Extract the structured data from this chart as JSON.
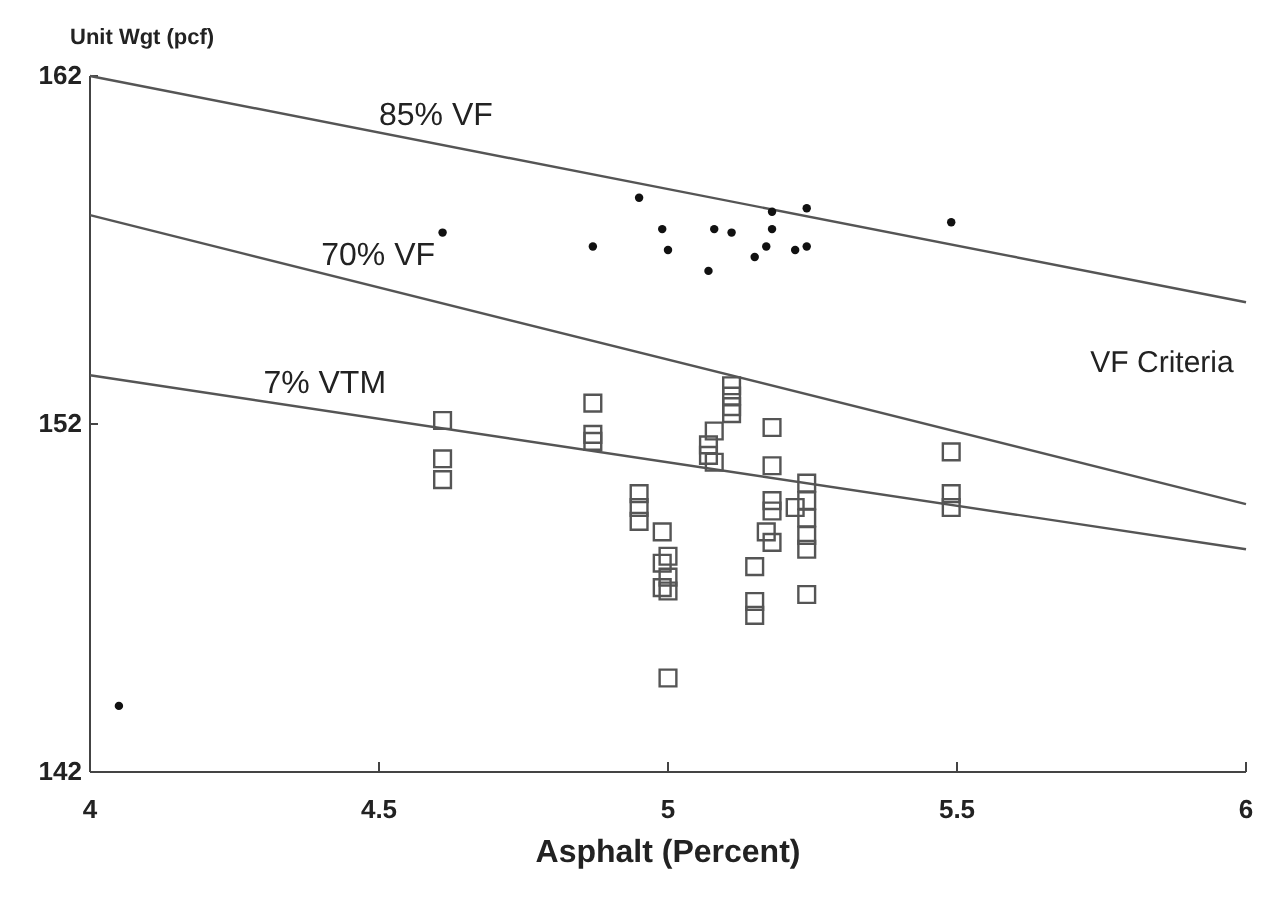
{
  "chart_data": {
    "type": "scatter",
    "xlabel": "Asphalt (Percent)",
    "ylabel": "Unit Wgt (pcf)",
    "xlim": [
      4,
      6
    ],
    "ylim": [
      142,
      162
    ],
    "xticks": [
      4,
      4.5,
      5,
      5.5,
      6
    ],
    "yticks": [
      142,
      152,
      162
    ],
    "grid": false,
    "annotations": [
      "VF Criteria"
    ],
    "series": [
      {
        "name": "85% VF",
        "type": "line",
        "color": "#555555",
        "marker": "none",
        "x": [
          4,
          6
        ],
        "values": [
          162,
          155.5
        ]
      },
      {
        "name": "70% VF",
        "type": "line",
        "color": "#555555",
        "marker": "none",
        "x": [
          4,
          6
        ],
        "values": [
          158,
          149.7
        ]
      },
      {
        "name": "7% VTM",
        "type": "line",
        "color": "#555555",
        "marker": "none",
        "x": [
          4,
          6
        ],
        "values": [
          153.4,
          148.4
        ]
      },
      {
        "color": "#111111",
        "marker": "circle",
        "x": [
          4.61,
          4.87,
          4.95,
          4.99,
          5.0,
          5.07,
          5.08,
          5.11,
          5.15,
          5.17,
          5.18,
          5.18,
          5.22,
          5.24,
          5.24,
          5.49,
          4.05
        ],
        "values": [
          157.5,
          157.1,
          158.5,
          157.6,
          157.0,
          156.4,
          157.6,
          157.5,
          156.8,
          157.1,
          157.6,
          158.1,
          157.0,
          157.1,
          158.2,
          157.8,
          143.9
        ]
      },
      {
        "color": "#555555",
        "marker": "square",
        "x": [
          4.61,
          4.61,
          4.61,
          4.87,
          4.87,
          4.87,
          4.95,
          4.95,
          4.95,
          4.99,
          5.0,
          4.99,
          5.0,
          4.99,
          5.0,
          5.0,
          5.11,
          5.11,
          5.11,
          5.11,
          5.08,
          5.07,
          5.07,
          5.08,
          5.18,
          5.18,
          5.18,
          5.18,
          5.17,
          5.18,
          5.15,
          5.15,
          5.15,
          5.22,
          5.24,
          5.24,
          5.24,
          5.24,
          5.24,
          5.24,
          5.49,
          5.49,
          5.49
        ],
        "values": [
          152.1,
          151.0,
          150.4,
          152.6,
          151.7,
          151.5,
          150.0,
          149.6,
          149.2,
          148.9,
          148.2,
          148.0,
          147.6,
          147.3,
          147.2,
          144.7,
          153.1,
          152.8,
          152.5,
          152.3,
          151.8,
          151.4,
          151.1,
          150.9,
          151.9,
          150.8,
          149.8,
          149.5,
          148.9,
          148.6,
          147.9,
          146.9,
          146.5,
          149.6,
          150.3,
          149.8,
          149.3,
          148.8,
          148.4,
          147.1,
          151.2,
          150.0,
          149.6
        ]
      }
    ]
  }
}
